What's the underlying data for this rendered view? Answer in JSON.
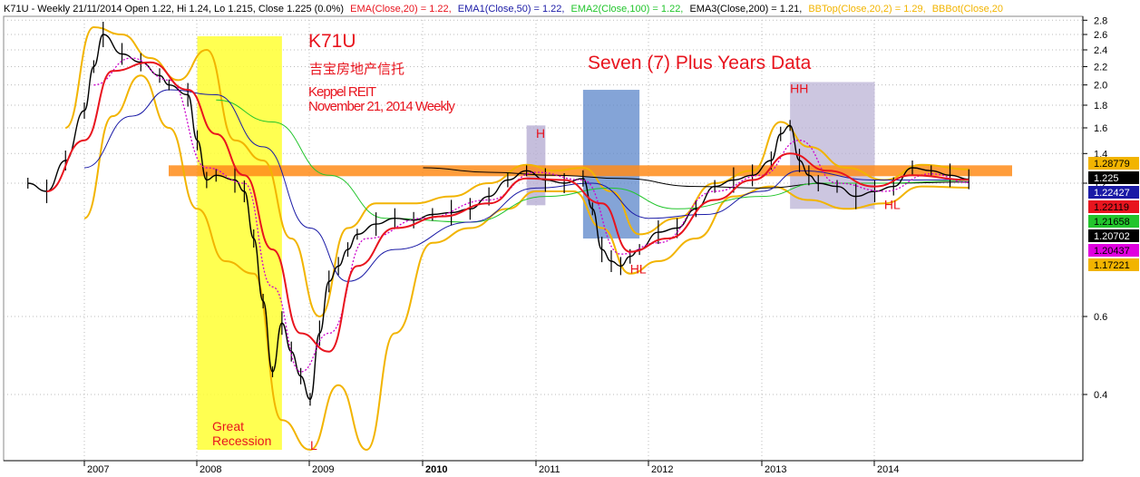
{
  "header": {
    "summary": "K71U - Weekly 21/11/2014 Open 1.22, Hi 1.24, Lo 1.215, Close 1.225 (0.0%)",
    "indicators": [
      {
        "label": "EMA(Close,20) = 1.22,",
        "color": "#e8141e"
      },
      {
        "label": "EMA1(Close,50) = 1.22,",
        "color": "#1a1aa6"
      },
      {
        "label": "EMA2(Close,100) = 1.22,",
        "color": "#22c52c"
      },
      {
        "label": "EMA3(Close,200) = 1.21,",
        "color": "#000000"
      },
      {
        "label": "BBTop(Close,20,2) = 1.29,",
        "color": "#f2b400"
      },
      {
        "label": "BBBot(Close,20",
        "color": "#f2b400"
      }
    ]
  },
  "annotations": {
    "ticker": "K71U",
    "chinese_name": "吉宝房地产信托",
    "name_line1": "Keppel REIT",
    "name_line2": "November 21, 2014 Weekly",
    "subtitle": "Seven (7) Plus Years Data",
    "recession": "Great Recession",
    "pivots": [
      {
        "label": "L",
        "x": "2009-01",
        "y": 0.3
      },
      {
        "label": "H",
        "x": "2011-01",
        "y": 1.52
      },
      {
        "label": "HL",
        "x": "2011-11",
        "y": 0.75
      },
      {
        "label": "HH",
        "x": "2013-04",
        "y": 1.92
      },
      {
        "label": "HL",
        "x": "2014-02",
        "y": 1.05
      }
    ]
  },
  "colors": {
    "price": "#000000",
    "ema20": "#e8141e",
    "ema50": "#1a1aa6",
    "ema100": "#22c52c",
    "ema200": "#000000",
    "bbands": "#f2b400",
    "ma_dotted": "#cc00cc",
    "resistance": "#ff8c1a",
    "recession_box": "#ffff33",
    "blue_box": "#5b86c9",
    "purple_box": "#b7aed3",
    "annotation_red": "#e8141e"
  },
  "right_tags": [
    {
      "value": "1.28779",
      "bg": "#f2b400",
      "fg": "#000000"
    },
    {
      "value": "1.225",
      "bg": "#000000",
      "fg": "#ffffff"
    },
    {
      "value": "1.22427",
      "bg": "#1a1aa6",
      "fg": "#ffffff"
    },
    {
      "value": "1.22119",
      "bg": "#e8141e",
      "fg": "#000000"
    },
    {
      "value": "1.21658",
      "bg": "#22c52c",
      "fg": "#000000"
    },
    {
      "value": "1.20702",
      "bg": "#000000",
      "fg": "#ffffff"
    },
    {
      "value": "1.20437",
      "bg": "#e000e0",
      "fg": "#000000"
    },
    {
      "value": "1.17221",
      "bg": "#f2b400",
      "fg": "#000000"
    }
  ],
  "chart_data": {
    "type": "line",
    "scale": "log",
    "ylim": [
      0.3,
      3.0
    ],
    "yticks": [
      2.8,
      2.6,
      2.4,
      2.2,
      2.0,
      1.8,
      1.6,
      1.4,
      1.2,
      0.6,
      0.4
    ],
    "xticks": [
      "2007",
      "2008",
      "2009",
      "2010",
      "2011",
      "2012",
      "2013",
      "2014"
    ],
    "xlim": [
      "2006-07",
      "2014-12"
    ],
    "grid": "dotted",
    "resistance_level": 1.28,
    "shaded_regions": [
      {
        "name": "recession",
        "x": [
          "2008-01",
          "2008-10"
        ],
        "y": [
          0.3,
          3.0
        ]
      },
      {
        "name": "blue",
        "x": [
          "2011-06",
          "2011-12"
        ],
        "y": [
          0.9,
          1.95
        ]
      },
      {
        "name": "purple_small",
        "x": [
          "2010-12",
          "2011-02"
        ],
        "y": [
          1.07,
          1.62
        ]
      },
      {
        "name": "purple_large",
        "x": [
          "2013-04",
          "2014-01"
        ],
        "y": [
          1.05,
          2.03
        ]
      }
    ],
    "series": [
      {
        "key": "price",
        "x": [
          "2006-07",
          "2006-09",
          "2006-11",
          "2007-01",
          "2007-02",
          "2007-03",
          "2007-05",
          "2007-07",
          "2007-09",
          "2007-10",
          "2007-12",
          "2008-01",
          "2008-02",
          "2008-03",
          "2008-05",
          "2008-06",
          "2008-07",
          "2008-08",
          "2008-09",
          "2008-10",
          "2008-11",
          "2008-12",
          "2009-01",
          "2009-02",
          "2009-03",
          "2009-04",
          "2009-05",
          "2009-06",
          "2009-08",
          "2009-10",
          "2009-12",
          "2010-02",
          "2010-04",
          "2010-06",
          "2010-08",
          "2010-10",
          "2010-12",
          "2011-02",
          "2011-04",
          "2011-06",
          "2011-07",
          "2011-08",
          "2011-09",
          "2011-10",
          "2011-11",
          "2011-12",
          "2012-02",
          "2012-04",
          "2012-06",
          "2012-08",
          "2012-10",
          "2012-12",
          "2013-02",
          "2013-03",
          "2013-04",
          "2013-05",
          "2013-06",
          "2013-07",
          "2013-09",
          "2013-11",
          "2014-01",
          "2014-03",
          "2014-05",
          "2014-07",
          "2014-09",
          "2014-11"
        ],
        "values": [
          1.2,
          1.15,
          1.35,
          1.75,
          2.2,
          2.6,
          2.35,
          2.25,
          2.1,
          2.0,
          1.9,
          1.5,
          1.22,
          1.25,
          1.22,
          1.15,
          0.9,
          0.65,
          0.45,
          0.58,
          0.5,
          0.44,
          0.39,
          0.55,
          0.72,
          0.78,
          0.85,
          0.92,
          0.97,
          1.0,
          0.99,
          1.02,
          1.03,
          1.05,
          1.12,
          1.22,
          1.28,
          1.22,
          1.2,
          1.23,
          1.05,
          0.85,
          0.8,
          0.78,
          0.82,
          0.85,
          0.93,
          0.95,
          1.05,
          1.18,
          1.22,
          1.25,
          1.35,
          1.55,
          1.62,
          1.35,
          1.25,
          1.2,
          1.18,
          1.12,
          1.15,
          1.18,
          1.3,
          1.28,
          1.25,
          1.225
        ]
      },
      {
        "key": "ema20",
        "x": [
          "2006-09",
          "2007-01",
          "2007-04",
          "2007-08",
          "2007-12",
          "2008-03",
          "2008-06",
          "2008-09",
          "2008-12",
          "2009-03",
          "2009-06",
          "2009-10",
          "2010-03",
          "2010-08",
          "2010-12",
          "2011-04",
          "2011-08",
          "2011-11",
          "2012-03",
          "2012-08",
          "2012-12",
          "2013-04",
          "2013-08",
          "2014-01",
          "2014-05",
          "2014-11"
        ],
        "values": [
          1.15,
          1.5,
          2.15,
          2.25,
          1.95,
          1.55,
          1.25,
          0.85,
          0.55,
          0.5,
          0.78,
          0.95,
          1.01,
          1.08,
          1.23,
          1.22,
          1.08,
          0.84,
          0.9,
          1.1,
          1.22,
          1.4,
          1.28,
          1.18,
          1.25,
          1.221
        ]
      },
      {
        "key": "ema50",
        "x": [
          "2007-01",
          "2007-06",
          "2007-10",
          "2008-03",
          "2008-08",
          "2009-01",
          "2009-05",
          "2009-10",
          "2010-06",
          "2011-01",
          "2011-07",
          "2012-01",
          "2012-07",
          "2013-01",
          "2013-05",
          "2014-01",
          "2014-06",
          "2014-11"
        ],
        "values": [
          1.3,
          1.7,
          1.95,
          1.9,
          1.45,
          0.95,
          0.72,
          0.85,
          0.98,
          1.17,
          1.2,
          1.0,
          1.02,
          1.15,
          1.28,
          1.22,
          1.22,
          1.224
        ]
      },
      {
        "key": "ema100",
        "x": [
          "2008-03",
          "2008-09",
          "2009-03",
          "2009-09",
          "2010-06",
          "2011-02",
          "2011-09",
          "2012-04",
          "2013-01",
          "2013-07",
          "2014-02",
          "2014-11"
        ],
        "values": [
          1.85,
          1.65,
          1.25,
          1.0,
          0.98,
          1.12,
          1.17,
          1.05,
          1.12,
          1.2,
          1.2,
          1.217
        ]
      },
      {
        "key": "ema200",
        "x": [
          "2010-01",
          "2010-08",
          "2011-03",
          "2011-10",
          "2012-06",
          "2013-01",
          "2013-08",
          "2014-03",
          "2014-11"
        ],
        "values": [
          1.3,
          1.27,
          1.25,
          1.23,
          1.18,
          1.17,
          1.2,
          1.2,
          1.207
        ]
      },
      {
        "key": "bb_top",
        "x": [
          "2006-11",
          "2007-02",
          "2007-05",
          "2007-08",
          "2007-11",
          "2008-02",
          "2008-05",
          "2008-08",
          "2008-11",
          "2009-02",
          "2009-05",
          "2009-08",
          "2009-12",
          "2010-04",
          "2010-08",
          "2010-12",
          "2011-03",
          "2011-06",
          "2011-09",
          "2011-12",
          "2012-04",
          "2012-08",
          "2012-12",
          "2013-03",
          "2013-06",
          "2013-10",
          "2014-02",
          "2014-06",
          "2014-11"
        ],
        "values": [
          1.6,
          2.7,
          2.6,
          2.3,
          2.05,
          2.4,
          1.5,
          1.35,
          0.9,
          0.6,
          0.95,
          1.08,
          1.08,
          1.12,
          1.2,
          1.32,
          1.28,
          1.3,
          1.15,
          0.92,
          1.0,
          1.2,
          1.28,
          1.65,
          1.45,
          1.3,
          1.22,
          1.32,
          1.29
        ]
      },
      {
        "key": "bb_bot",
        "x": [
          "2007-01",
          "2007-04",
          "2007-07",
          "2007-10",
          "2008-01",
          "2008-04",
          "2008-07",
          "2008-10",
          "2009-01",
          "2009-04",
          "2009-07",
          "2009-10",
          "2010-02",
          "2010-06",
          "2010-10",
          "2011-01",
          "2011-05",
          "2011-08",
          "2011-11",
          "2012-02",
          "2012-06",
          "2012-10",
          "2013-02",
          "2013-06",
          "2013-10",
          "2014-02",
          "2014-06",
          "2014-11"
        ],
        "values": [
          1.0,
          1.7,
          2.1,
          1.6,
          1.05,
          0.8,
          0.75,
          0.35,
          0.3,
          0.42,
          0.3,
          0.55,
          0.88,
          0.95,
          1.05,
          1.15,
          1.15,
          0.95,
          0.75,
          0.8,
          0.9,
          1.12,
          1.18,
          1.1,
          1.05,
          1.08,
          1.18,
          1.172
        ]
      },
      {
        "key": "ma_dotted",
        "x": [
          "2007-02",
          "2007-06",
          "2007-10",
          "2008-02",
          "2008-06",
          "2008-09",
          "2008-12",
          "2009-03",
          "2009-07",
          "2010-01",
          "2010-08",
          "2011-01",
          "2011-06",
          "2011-10",
          "2012-02",
          "2012-08",
          "2013-01",
          "2013-05",
          "2013-09",
          "2014-02",
          "2014-07",
          "2014-11"
        ],
        "values": [
          2.0,
          2.3,
          2.05,
          1.3,
          1.2,
          0.7,
          0.45,
          0.55,
          0.9,
          1.0,
          1.1,
          1.27,
          1.22,
          0.83,
          0.88,
          1.15,
          1.25,
          1.5,
          1.2,
          1.15,
          1.26,
          1.204
        ]
      }
    ]
  }
}
